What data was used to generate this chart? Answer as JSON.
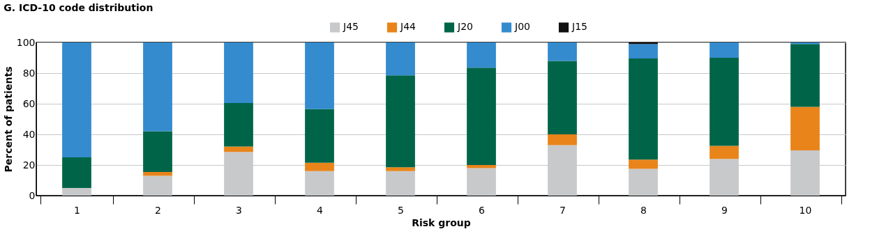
{
  "chart_data": {
    "type": "bar",
    "title": "G. ICD-10 code distribution",
    "xlabel": "Risk group",
    "ylabel": "Percent of patients",
    "categories": [
      "1",
      "2",
      "3",
      "4",
      "5",
      "6",
      "7",
      "8",
      "9",
      "10"
    ],
    "stacked": true,
    "series": [
      {
        "name": "J45",
        "color": "#c8c9ca",
        "values": [
          5,
          13,
          28.5,
          16,
          16,
          18,
          33,
          17.5,
          24,
          29.5
        ]
      },
      {
        "name": "J44",
        "color": "#e8841a",
        "values": [
          0,
          2.5,
          3.5,
          5.5,
          2.5,
          2,
          7,
          6,
          8.5,
          28.5
        ]
      },
      {
        "name": "J20",
        "color": "#006548",
        "values": [
          20,
          26.5,
          28.5,
          35,
          60,
          63.5,
          48,
          66,
          57.5,
          41
        ]
      },
      {
        "name": "J00",
        "color": "#348bce",
        "values": [
          75,
          58,
          39.5,
          43.5,
          21.5,
          16.5,
          12,
          9.5,
          10,
          1
        ]
      },
      {
        "name": "J15",
        "color": "#111111",
        "values": [
          0,
          0,
          0,
          0,
          0,
          0,
          0,
          1,
          0,
          0
        ]
      }
    ],
    "ylim": [
      0,
      100
    ],
    "yticks": [
      0,
      20,
      40,
      60,
      80,
      100
    ],
    "grid": "y",
    "legend": "top"
  }
}
